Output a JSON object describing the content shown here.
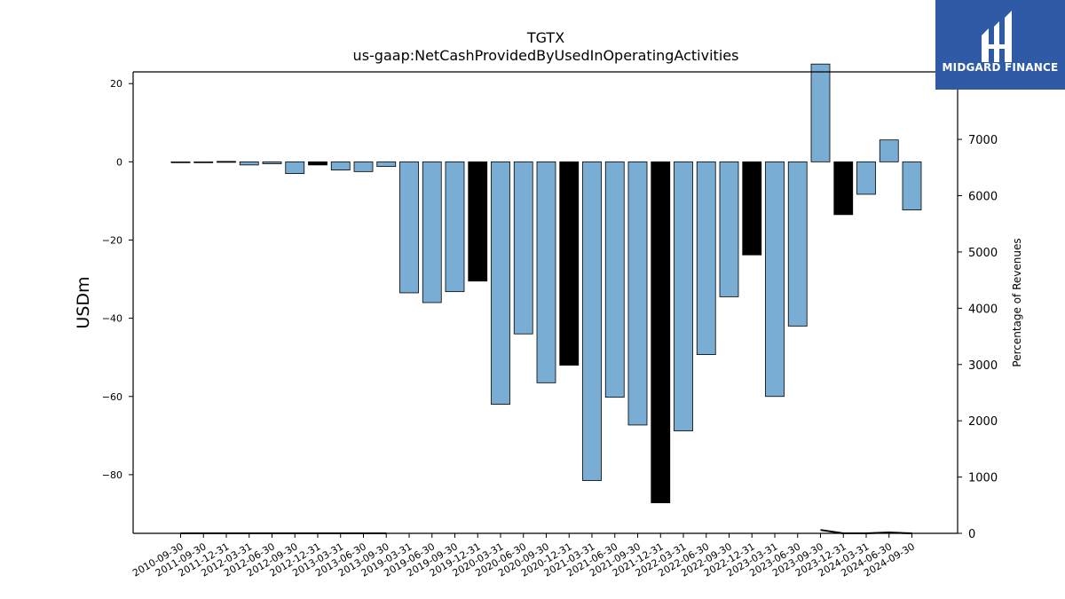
{
  "chart_data": {
    "type": "bar",
    "title": "TGTX",
    "subtitle": "us-gaap:NetCashProvidedByUsedInOperatingActivities",
    "ylabel": "USDm",
    "y2label": "Percentage of Revenues",
    "ylim": [
      -95,
      23
    ],
    "y2lim": [
      0,
      8200
    ],
    "yticks": [
      20,
      0,
      -20,
      -40,
      -60,
      -80
    ],
    "y2ticks": [
      0,
      1000,
      2000,
      3000,
      4000,
      5000,
      6000,
      7000
    ],
    "categories": [
      "2010-09-30",
      "2011-09-30",
      "2011-12-31",
      "2012-03-31",
      "2012-06-30",
      "2012-09-30",
      "2012-12-31",
      "2013-03-31",
      "2013-06-30",
      "2013-09-30",
      "2019-03-31",
      "2019-06-30",
      "2019-09-30",
      "2019-12-31",
      "2020-03-31",
      "2020-06-30",
      "2020-09-30",
      "2020-12-31",
      "2021-03-31",
      "2021-06-30",
      "2021-09-30",
      "2021-12-31",
      "2022-03-31",
      "2022-06-30",
      "2022-09-30",
      "2022-12-31",
      "2023-03-31",
      "2023-06-30",
      "2023-09-30",
      "2023-12-31",
      "2024-03-31",
      "2024-06-30",
      "2024-09-30"
    ],
    "values": [
      -0.2,
      -0.2,
      0.1,
      -0.8,
      -0.5,
      -3.0,
      -0.8,
      -2.1,
      -2.5,
      -1.2,
      -33.5,
      -36.0,
      -33.2,
      -30.5,
      -62.0,
      -44.0,
      -56.5,
      -52.0,
      -81.5,
      -60.2,
      -67.3,
      -87.2,
      -68.8,
      -49.3,
      -34.5,
      -23.8,
      -60.0,
      -42.0,
      25.0,
      -13.5,
      -8.3,
      5.6,
      -12.3
    ],
    "highlight": [
      false,
      false,
      true,
      false,
      false,
      false,
      true,
      false,
      false,
      false,
      false,
      false,
      false,
      true,
      false,
      false,
      false,
      true,
      false,
      false,
      false,
      true,
      false,
      false,
      false,
      true,
      false,
      false,
      false,
      true,
      false,
      false,
      false
    ],
    "pct_revenue": [
      0,
      0,
      0,
      0,
      0,
      0,
      0,
      0,
      0,
      0,
      null,
      null,
      null,
      null,
      null,
      null,
      null,
      null,
      null,
      null,
      null,
      null,
      null,
      null,
      null,
      null,
      null,
      null,
      60,
      0,
      0,
      15,
      0
    ],
    "colors": {
      "bar": "#7aadd4",
      "highlight": "#000000",
      "line": "#000000"
    }
  },
  "logo": {
    "name": "MIDGARD FINANCE"
  }
}
